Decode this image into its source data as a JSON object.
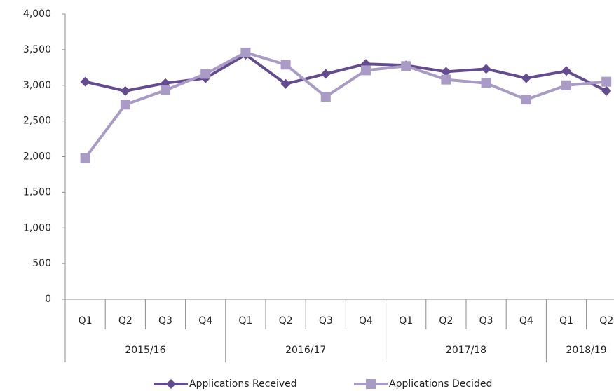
{
  "chart_data": {
    "type": "line",
    "groups": [
      {
        "name": "2015/16",
        "categories": [
          "Q1",
          "Q2",
          "Q3",
          "Q4"
        ]
      },
      {
        "name": "2016/17",
        "categories": [
          "Q1",
          "Q2",
          "Q3",
          "Q4"
        ]
      },
      {
        "name": "2017/18",
        "categories": [
          "Q1",
          "Q2",
          "Q3",
          "Q4"
        ]
      },
      {
        "name": "2018/19",
        "categories": [
          "Q1",
          "Q2"
        ]
      }
    ],
    "series": [
      {
        "name": "Applications Received",
        "color": "#644a8f",
        "marker": "diamond",
        "values": [
          3050,
          2920,
          3030,
          3100,
          3430,
          3020,
          3160,
          3300,
          3280,
          3190,
          3230,
          3100,
          3200,
          2920
        ]
      },
      {
        "name": "Applications Decided",
        "color": "#a99bc6",
        "marker": "square",
        "values": [
          1980,
          2730,
          2930,
          3160,
          3460,
          3290,
          2840,
          3210,
          3270,
          3080,
          3030,
          2800,
          3000,
          3050
        ]
      }
    ],
    "ylim": [
      0,
      4000
    ],
    "yticks": [
      0,
      500,
      {
        "value": 1000,
        "label": "1,000"
      },
      {
        "value": 1500,
        "label": "1,500"
      },
      {
        "value": 2000,
        "label": "2,000"
      },
      {
        "value": 2500,
        "label": "2,500"
      },
      {
        "value": 3000,
        "label": "3,000"
      },
      {
        "value": 3500,
        "label": "3,500"
      },
      {
        "value": 4000,
        "label": "4,000"
      }
    ],
    "legend": "bottom"
  }
}
